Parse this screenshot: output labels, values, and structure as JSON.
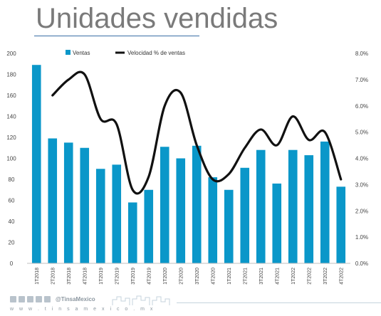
{
  "header": {
    "title": "Unidades vendidas"
  },
  "footer": {
    "handle": "@TinsaMexico",
    "site": "w w w . t i n s a m e x i c o . m x"
  },
  "icons": [
    "square-icon",
    "twitter-icon",
    "facebook-icon",
    "linkedin-icon",
    "email-icon"
  ],
  "colors": {
    "bars": "#0a97c9",
    "line": "#111111",
    "title": "#7a7a7a"
  },
  "chart_data": {
    "type": "bar",
    "categories": [
      "1T2018",
      "2T2018",
      "3T2018",
      "4T2018",
      "1T2019",
      "2T2019",
      "3T2019",
      "4T2019",
      "1T2020",
      "2T2020",
      "3T2020",
      "4T2020",
      "1T2021",
      "2T2021",
      "3T2021",
      "4T2021",
      "1T2022",
      "2T2022",
      "3T2022",
      "4T2022"
    ],
    "series": [
      {
        "name": "Ventas",
        "kind": "bar",
        "axis": "left",
        "values": [
          189,
          119,
          115,
          110,
          90,
          94,
          58,
          70,
          111,
          100,
          112,
          82,
          70,
          91,
          108,
          76,
          108,
          103,
          116,
          73
        ]
      },
      {
        "name": "Velocidad % de ventas",
        "kind": "line",
        "axis": "right",
        "smooth": true,
        "values": [
          null,
          6.4,
          7.0,
          7.2,
          5.5,
          5.3,
          2.8,
          3.3,
          6.0,
          6.5,
          4.5,
          3.2,
          3.4,
          4.4,
          5.1,
          4.5,
          5.6,
          4.7,
          5.0,
          3.2
        ]
      }
    ],
    "y_left": {
      "min": 0,
      "max": 200,
      "ticks": [
        "0",
        "20",
        "40",
        "60",
        "80",
        "100",
        "120",
        "140",
        "160",
        "180",
        "200"
      ]
    },
    "y_right": {
      "min": 0,
      "max": 8,
      "ticks": [
        "0.0%",
        "1.0%",
        "2.0%",
        "3.0%",
        "4.0%",
        "5.0%",
        "6.0%",
        "7.0%",
        "8.0%"
      ]
    },
    "legend": {
      "placement": "top"
    },
    "grid": false
  }
}
